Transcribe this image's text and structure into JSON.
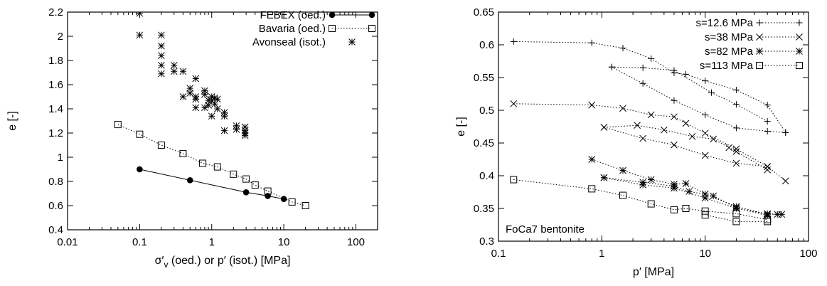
{
  "chart_data": [
    {
      "type": "scatter",
      "title": "",
      "xlabel": "σ′v (oed.) or p′ (isot.) [MPa]",
      "xlabel_main": "σ′",
      "xlabel_sub": "v",
      "xlabel_rest": " (oed.) or p′ (isot.) [MPa]",
      "ylabel": "e [-]",
      "xscale": "log",
      "xlim": [
        0.01,
        200
      ],
      "ylim": [
        0.4,
        2.2
      ],
      "xticks": [
        0.01,
        0.1,
        1,
        10,
        100
      ],
      "xtick_labels": [
        "0.01",
        "0.1",
        "1",
        "10",
        "100"
      ],
      "yticks": [
        0.4,
        0.6,
        0.8,
        1,
        1.2,
        1.4,
        1.6,
        1.8,
        2,
        2.2
      ],
      "ytick_labels": [
        "0.4",
        "0.6",
        "0.8",
        "1",
        "1.2",
        "1.4",
        "1.6",
        "1.8",
        "2",
        "2.2"
      ],
      "legend_position": "top-right",
      "series": [
        {
          "name": "FEBEX (oed.)",
          "marker": "filled-circle",
          "line": "solid",
          "x": [
            0.1,
            0.5,
            3,
            6,
            10
          ],
          "y": [
            0.9,
            0.81,
            0.71,
            0.68,
            0.655
          ]
        },
        {
          "name": "Bavaria (oed.)",
          "marker": "open-square",
          "line": "dotted",
          "x": [
            0.05,
            0.1,
            0.2,
            0.4,
            0.75,
            1.2,
            2,
            3,
            4,
            6,
            13,
            20
          ],
          "y": [
            1.27,
            1.19,
            1.1,
            1.03,
            0.95,
            0.92,
            0.86,
            0.82,
            0.77,
            0.72,
            0.63,
            0.6
          ]
        },
        {
          "name": "Avonseal (isot.)",
          "marker": "star",
          "line": "none",
          "x": [
            0.1,
            0.1,
            0.2,
            0.2,
            0.2,
            0.2,
            0.2,
            0.3,
            0.3,
            0.4,
            0.4,
            0.5,
            0.5,
            0.6,
            0.6,
            0.6,
            0.6,
            0.8,
            0.8,
            0.8,
            0.9,
            0.9,
            1.0,
            1.0,
            1.0,
            1.1,
            1.1,
            1.2,
            1.2,
            1.5,
            1.5,
            1.5,
            2.2,
            2.2,
            2.9,
            2.9,
            2.9,
            2.9
          ],
          "y": [
            2.19,
            2.01,
            2.01,
            1.92,
            1.84,
            1.76,
            1.69,
            1.76,
            1.71,
            1.71,
            1.5,
            1.57,
            1.53,
            1.65,
            1.5,
            1.48,
            1.41,
            1.55,
            1.52,
            1.41,
            1.47,
            1.43,
            1.5,
            1.47,
            1.34,
            1.49,
            1.44,
            1.48,
            1.4,
            1.37,
            1.34,
            1.22,
            1.26,
            1.23,
            1.25,
            1.22,
            1.2,
            1.18
          ]
        }
      ]
    },
    {
      "type": "line",
      "title": "",
      "xlabel": "p′ [MPa]",
      "ylabel": "e [-]",
      "annotation": "FoCa7 bentonite",
      "xscale": "log",
      "xlim": [
        0.1,
        100
      ],
      "ylim": [
        0.3,
        0.65
      ],
      "xticks": [
        0.1,
        1,
        10,
        100
      ],
      "xtick_labels": [
        "0.1",
        "1",
        "10",
        "100"
      ],
      "yticks": [
        0.3,
        0.35,
        0.4,
        0.45,
        0.5,
        0.55,
        0.6,
        0.65
      ],
      "ytick_labels": [
        "0.3",
        "0.35",
        "0.4",
        "0.45",
        "0.5",
        "0.55",
        "0.6",
        "0.65"
      ],
      "legend_position": "top-right",
      "series": [
        {
          "name": "s=12.6 MPa",
          "marker": "plus",
          "segments": [
            {
              "x": [
                0.14,
                0.8,
                1.6,
                3,
                5,
                6.5,
                10,
                20,
                40,
                60
              ],
              "y": [
                0.605,
                0.603,
                0.595,
                0.579,
                0.557,
                0.555,
                0.545,
                0.531,
                0.508,
                0.466
              ]
            },
            {
              "x": [
                60,
                40,
                20,
                10,
                5,
                2.5,
                1.25
              ],
              "y": [
                0.466,
                0.468,
                0.473,
                0.493,
                0.515,
                0.541,
                0.566
              ]
            },
            {
              "x": [
                1.25,
                2.5,
                5,
                11.5,
                20,
                40
              ],
              "y": [
                0.566,
                0.565,
                0.561,
                0.527,
                0.509,
                0.483
              ]
            }
          ]
        },
        {
          "name": "s=38 MPa",
          "marker": "cross",
          "segments": [
            {
              "x": [
                0.14,
                0.8,
                1.6,
                3,
                5,
                6.5,
                10,
                20,
                40,
                60
              ],
              "y": [
                0.51,
                0.508,
                0.503,
                0.493,
                0.49,
                0.48,
                0.465,
                0.441,
                0.414,
                0.392
              ]
            },
            {
              "x": [
                40,
                20,
                10,
                5,
                2.5,
                1.05
              ],
              "y": [
                0.414,
                0.419,
                0.431,
                0.447,
                0.457,
                0.474
              ]
            },
            {
              "x": [
                1.05,
                2.2,
                4,
                7.5,
                12,
                17,
                20,
                40
              ],
              "y": [
                0.474,
                0.477,
                0.47,
                0.46,
                0.456,
                0.443,
                0.437,
                0.409
              ]
            }
          ]
        },
        {
          "name": "s=82 MPa",
          "marker": "star",
          "segments": [
            {
              "x": [
                0.8,
                1.6,
                3,
                5,
                6.5,
                10,
                20,
                40,
                50
              ],
              "y": [
                0.425,
                0.408,
                0.394,
                0.387,
                0.388,
                0.372,
                0.353,
                0.341,
                0.341
              ]
            },
            {
              "x": [
                55,
                40,
                20,
                10,
                5,
                2.5,
                1.05
              ],
              "y": [
                0.341,
                0.342,
                0.35,
                0.366,
                0.381,
                0.386,
                0.397
              ]
            },
            {
              "x": [
                1.05,
                2.5,
                5,
                7,
                12,
                20,
                40
              ],
              "y": [
                0.397,
                0.39,
                0.384,
                0.376,
                0.369,
                0.351,
                0.339
              ]
            }
          ]
        },
        {
          "name": "s=113 MPa",
          "marker": "open-square",
          "segments": [
            {
              "x": [
                0.14,
                0.8,
                1.6,
                3,
                5,
                6.5,
                10,
                20,
                40
              ],
              "y": [
                0.394,
                0.38,
                0.37,
                0.357,
                0.348,
                0.35,
                0.346,
                0.342,
                0.333
              ]
            },
            {
              "x": [
                40,
                20,
                10
              ],
              "y": [
                0.33,
                0.33,
                0.34
              ]
            }
          ]
        }
      ]
    }
  ]
}
